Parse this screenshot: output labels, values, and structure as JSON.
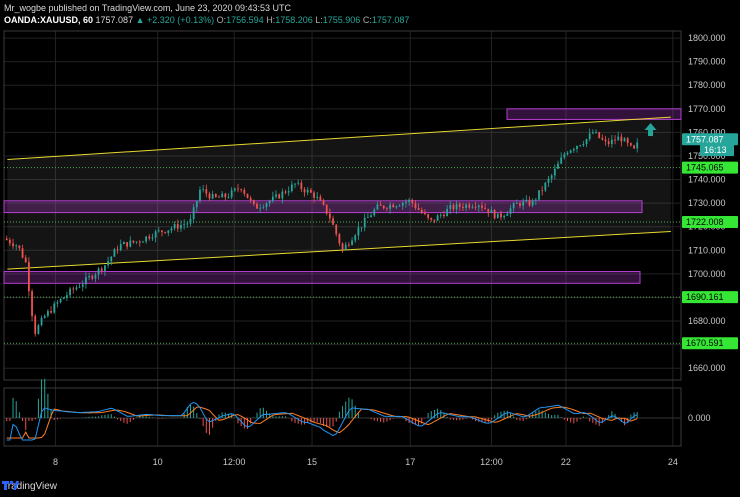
{
  "header": {
    "line1": "Mr_wogbe published on TradingView.com, June 23, 2020 09:43:53 UTC",
    "symbol": "OANDA:XAUUSD, 60",
    "last": "1757.087",
    "change": "+2.320 (+0.13%)",
    "o_label": "O:",
    "o": "1756.594",
    "h_label": "H:",
    "h": "1758.206",
    "l_label": "L:",
    "l": "1755.906",
    "c_label": "C:",
    "c": "1757.087"
  },
  "footer": {
    "brand": "TradingView"
  },
  "colors": {
    "up": "#26a69a",
    "down": "#ef5350",
    "channel": "#e8d830",
    "zone": "#b33fd0",
    "level": "#4caf50",
    "macd": "#2196f3",
    "signal": "#ff7f27"
  },
  "chart_data": {
    "type": "candlestick",
    "y_axis": {
      "range": [
        1655,
        1803
      ],
      "ticks": [
        "1800.000",
        "1790.000",
        "1780.000",
        "1770.000",
        "1760.000",
        "1750.000",
        "1740.000",
        "1730.000",
        "1720.000",
        "1710.000",
        "1700.000",
        "1690.000",
        "1680.000",
        "1670.000",
        "1660.000"
      ]
    },
    "x_axis": {
      "ticks": [
        "8",
        "10",
        "12:00",
        "15",
        "17",
        "12:00",
        "22",
        "24"
      ]
    },
    "price_tags": [
      {
        "id": "last",
        "value": "1757.087",
        "price": 1757.087,
        "style": "last"
      },
      {
        "id": "countdown",
        "value": "16:13",
        "price": 1752.5,
        "style": "timer"
      },
      {
        "id": "r1",
        "value": "1745.065",
        "price": 1745.065,
        "style": "level"
      },
      {
        "id": "r2",
        "value": "1722.008",
        "price": 1722.008,
        "style": "level"
      },
      {
        "id": "s1",
        "value": "1690.161",
        "price": 1690.161,
        "style": "level"
      },
      {
        "id": "s2",
        "value": "1670.591",
        "price": 1670.591,
        "style": "level"
      }
    ],
    "horizontal_levels": [
      1745.065,
      1722.008,
      1690.161,
      1670.591
    ],
    "zones": [
      {
        "low": 1765.5,
        "high": 1770
      },
      {
        "low": 1726,
        "high": 1731
      },
      {
        "low": 1696,
        "high": 1701
      }
    ],
    "channel": {
      "upper": [
        [
          0.005,
          1748.5
        ],
        [
          0.985,
          1766.5
        ]
      ],
      "lower": [
        [
          0.005,
          1702
        ],
        [
          0.985,
          1718
        ]
      ]
    },
    "macd": {
      "zero_label": "0.000"
    },
    "arrow": "up"
  }
}
